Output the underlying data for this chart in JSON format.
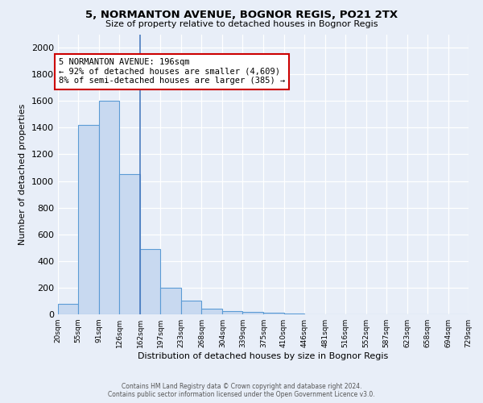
{
  "title_line1": "5, NORMANTON AVENUE, BOGNOR REGIS, PO21 2TX",
  "title_line2": "Size of property relative to detached houses in Bognor Regis",
  "xlabel": "Distribution of detached houses by size in Bognor Regis",
  "ylabel": "Number of detached properties",
  "bin_labels": [
    "20sqm",
    "55sqm",
    "91sqm",
    "126sqm",
    "162sqm",
    "197sqm",
    "233sqm",
    "268sqm",
    "304sqm",
    "339sqm",
    "375sqm",
    "410sqm",
    "446sqm",
    "481sqm",
    "516sqm",
    "552sqm",
    "587sqm",
    "623sqm",
    "658sqm",
    "694sqm",
    "729sqm"
  ],
  "bar_heights": [
    80,
    1420,
    1600,
    1050,
    490,
    200,
    105,
    40,
    25,
    18,
    12,
    5,
    0,
    0,
    0,
    0,
    0,
    0,
    0,
    0
  ],
  "bar_color": "#c8d9f0",
  "bar_edge_color": "#5b9bd5",
  "annotation_text": "5 NORMANTON AVENUE: 196sqm\n← 92% of detached houses are smaller (4,609)\n8% of semi-detached houses are larger (385) →",
  "annotation_box_color": "#ffffff",
  "annotation_box_edge": "#cc0000",
  "vline_bin_index": 4,
  "ylim": [
    0,
    2100
  ],
  "yticks": [
    0,
    200,
    400,
    600,
    800,
    1000,
    1200,
    1400,
    1600,
    1800,
    2000
  ],
  "footer_line1": "Contains HM Land Registry data © Crown copyright and database right 2024.",
  "footer_line2": "Contains public sector information licensed under the Open Government Licence v3.0.",
  "bg_color": "#e8eef8",
  "plot_bg_color": "#e8eef8"
}
